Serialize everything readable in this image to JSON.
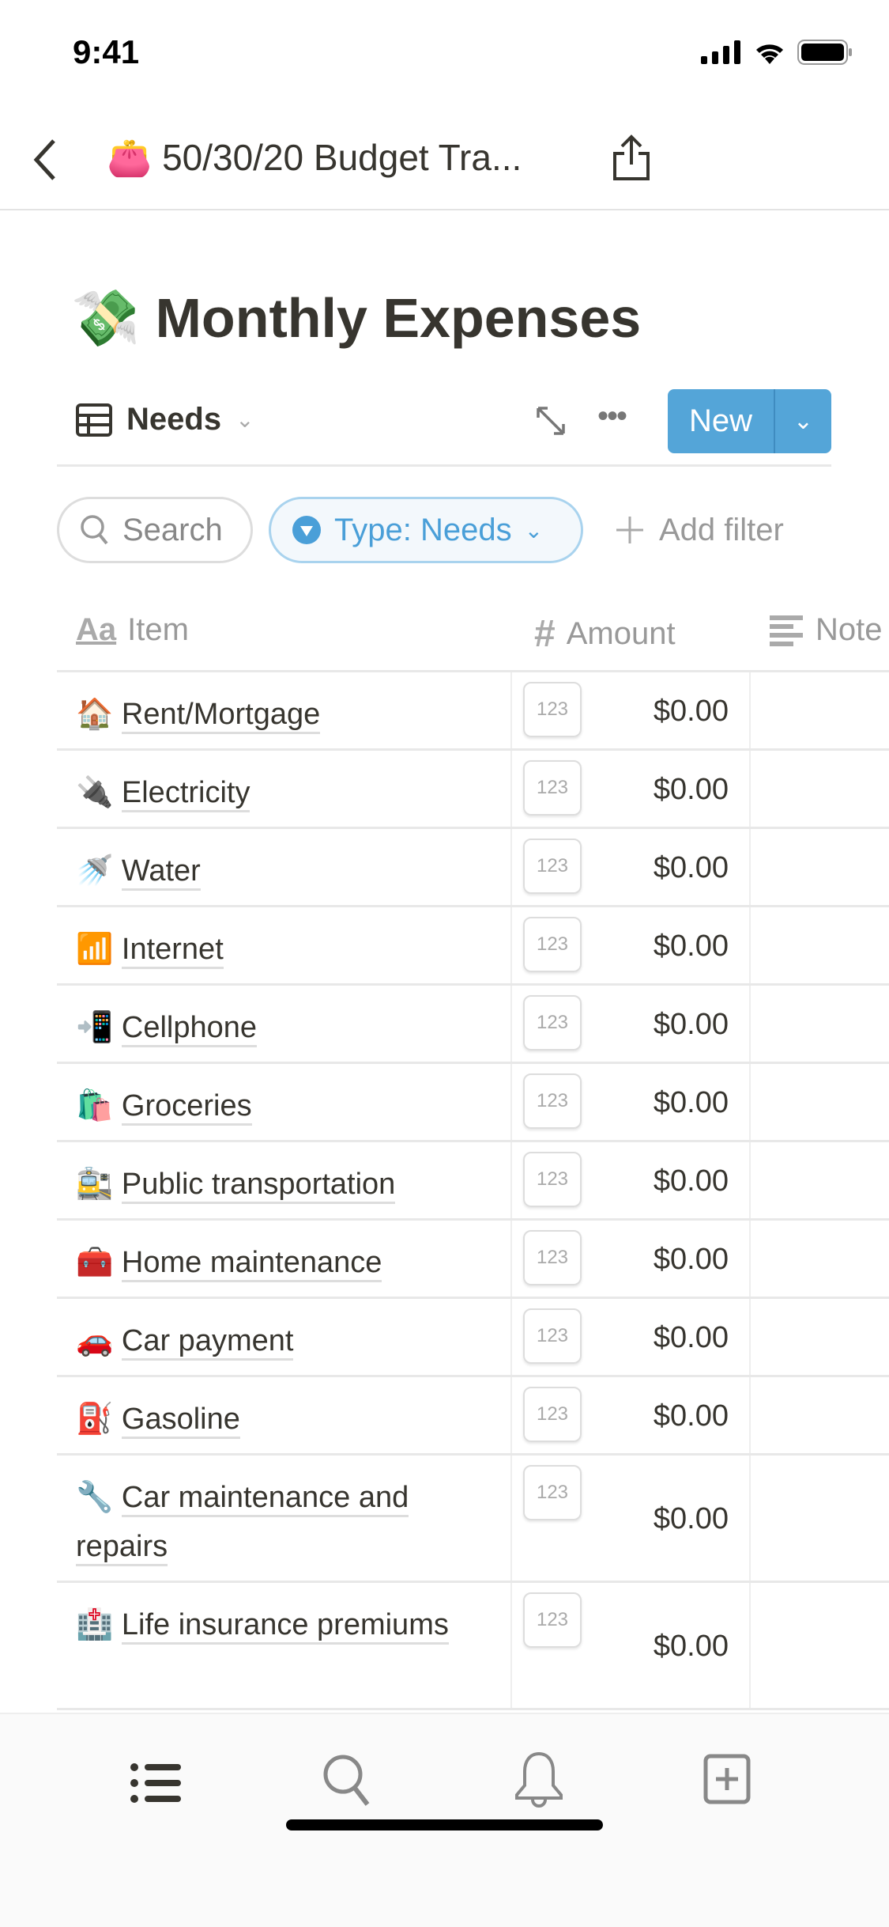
{
  "status_bar": {
    "time": "9:41"
  },
  "header": {
    "back_icon": "chevron-left",
    "page_icon": "👛",
    "title": "50/30/20 Budget Tra...",
    "share_icon": "share"
  },
  "page": {
    "icon": "💸",
    "title": "Monthly Expenses"
  },
  "toolbar": {
    "view_label": "Needs",
    "new_label": "New"
  },
  "filters": {
    "search_placeholder": "Search",
    "type_filter": "Type: Needs",
    "add_filter": "Add filter"
  },
  "columns": [
    {
      "label": "Item",
      "icon": "Aa"
    },
    {
      "label": "Amount",
      "icon": "#"
    },
    {
      "label": "Note",
      "icon": "text-lines"
    }
  ],
  "rows": [
    {
      "emoji": "🏠",
      "name": "Rent/Mortgage",
      "badge": "123",
      "amount": "$0.00"
    },
    {
      "emoji": "🔌",
      "name": "Electricity",
      "badge": "123",
      "amount": "$0.00"
    },
    {
      "emoji": "🚿",
      "name": "Water",
      "badge": "123",
      "amount": "$0.00"
    },
    {
      "emoji": "📶",
      "name": "Internet",
      "badge": "123",
      "amount": "$0.00"
    },
    {
      "emoji": "📲",
      "name": "Cellphone",
      "badge": "123",
      "amount": "$0.00"
    },
    {
      "emoji": "🛍️",
      "name": "Groceries",
      "badge": "123",
      "amount": "$0.00"
    },
    {
      "emoji": "🚉",
      "name": "Public transportation",
      "badge": "123",
      "amount": "$0.00"
    },
    {
      "emoji": "🧰",
      "name": "Home maintenance",
      "badge": "123",
      "amount": "$0.00"
    },
    {
      "emoji": "🚗",
      "name": "Car payment",
      "badge": "123",
      "amount": "$0.00"
    },
    {
      "emoji": "⛽",
      "name": "Gasoline",
      "badge": "123",
      "amount": "$0.00"
    },
    {
      "emoji": "🔧",
      "name": "Car maintenance and repairs",
      "badge": "123",
      "amount": "$0.00"
    },
    {
      "emoji": "🏥",
      "name": "Life insurance premiums",
      "badge": "123",
      "amount": "$0.00"
    }
  ],
  "bottom_nav": [
    "list",
    "search",
    "notifications",
    "new-page"
  ],
  "colors": {
    "accent": "#54a5d8",
    "filter_text": "#4a9fd8",
    "text": "#37352f"
  }
}
